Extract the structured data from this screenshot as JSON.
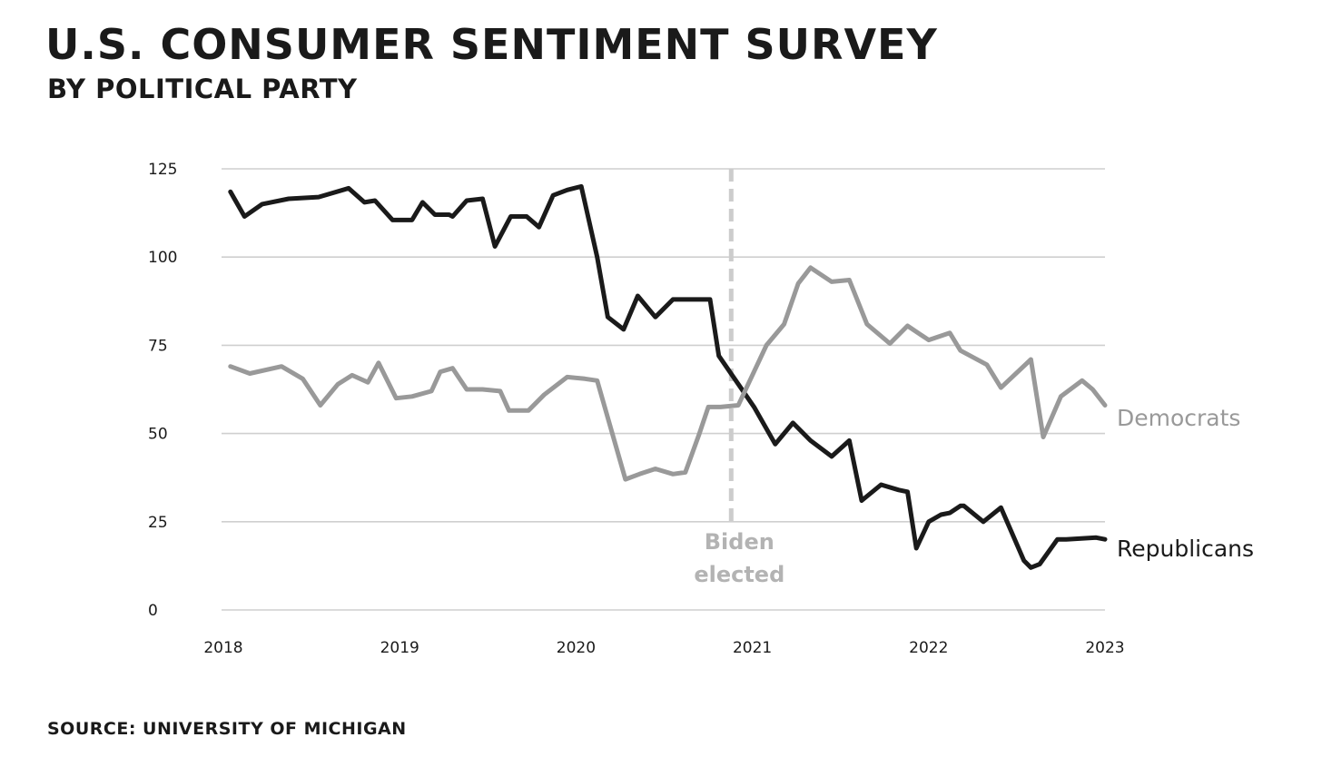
{
  "chart_data": {
    "type": "line",
    "title": "U.S. CONSUMER SENTIMENT SURVEY",
    "subtitle": "BY POLITICAL PARTY",
    "source": "SOURCE: UNIVERSITY OF MICHIGAN",
    "xlabel": "",
    "ylabel": "",
    "xlim": [
      2018,
      2023
    ],
    "ylim": [
      0,
      125
    ],
    "x_ticks": [
      "2018",
      "2019",
      "2020",
      "2021",
      "2022",
      "2023"
    ],
    "y_ticks": [
      "0",
      "25",
      "50",
      "75",
      "100",
      "125"
    ],
    "grid": "horizontal",
    "series": [
      {
        "name": "Republicans",
        "color": "#1a1a1a",
        "x": [
          2018.04,
          2018.12,
          2018.22,
          2018.37,
          2018.54,
          2018.71,
          2018.8,
          2018.86,
          2018.96,
          2019.07,
          2019.13,
          2019.2,
          2019.28,
          2019.3,
          2019.38,
          2019.47,
          2019.54,
          2019.63,
          2019.72,
          2019.79,
          2019.87,
          2019.95,
          2020.03,
          2020.12,
          2020.18,
          2020.27,
          2020.35,
          2020.45,
          2020.55,
          2020.65,
          2020.76,
          2020.81,
          2021.01,
          2021.13,
          2021.23,
          2021.33,
          2021.45,
          2021.55,
          2021.62,
          2021.73,
          2021.83,
          2021.88,
          2021.93,
          2022.0,
          2022.07,
          2022.12,
          2022.18,
          2022.2,
          2022.31,
          2022.41,
          2022.54,
          2022.58,
          2022.63,
          2022.73,
          2022.78,
          2022.95,
          2023.0
        ],
        "values": [
          118.5,
          111.5,
          115,
          116.5,
          117,
          119.5,
          115.5,
          116,
          110.5,
          110.5,
          115.5,
          112,
          112,
          111.5,
          116,
          116.5,
          103,
          111.5,
          111.5,
          108.5,
          117.5,
          119,
          120,
          100,
          83,
          79.5,
          89,
          83,
          88,
          88,
          88,
          72,
          57.5,
          47,
          53,
          48,
          43.5,
          48,
          31,
          35.5,
          34,
          33.5,
          17.5,
          25,
          27,
          27.5,
          29.5,
          29.5,
          25,
          29,
          14,
          12,
          13,
          20,
          20,
          20.5,
          20
        ]
      },
      {
        "name": "Democrats",
        "color": "#999999",
        "x": [
          2018.04,
          2018.15,
          2018.33,
          2018.45,
          2018.55,
          2018.65,
          2018.73,
          2018.82,
          2018.88,
          2018.98,
          2019.07,
          2019.18,
          2019.23,
          2019.3,
          2019.38,
          2019.47,
          2019.57,
          2019.62,
          2019.73,
          2019.82,
          2019.95,
          2020.05,
          2020.12,
          2020.28,
          2020.36,
          2020.45,
          2020.55,
          2020.62,
          2020.7,
          2020.75,
          2020.82,
          2020.92,
          2021.08,
          2021.18,
          2021.26,
          2021.33,
          2021.45,
          2021.55,
          2021.65,
          2021.78,
          2021.88,
          2022.0,
          2022.12,
          2022.18,
          2022.33,
          2022.41,
          2022.58,
          2022.65,
          2022.75,
          2022.87,
          2022.93,
          2023.0
        ],
        "values": [
          69,
          67,
          69,
          65.5,
          58,
          64,
          66.5,
          64.5,
          70,
          60,
          60.5,
          62,
          67.5,
          68.5,
          62.5,
          62.5,
          62,
          56.5,
          56.5,
          61,
          66,
          65.5,
          65,
          37,
          38.5,
          40,
          38.5,
          39,
          50,
          57.5,
          57.5,
          58,
          75,
          81,
          92.5,
          97,
          93,
          93.5,
          81,
          75.5,
          80.5,
          76.5,
          78.5,
          73.5,
          69.5,
          63,
          71,
          49,
          60.5,
          65,
          62.5,
          58
        ]
      }
    ],
    "annotations": [
      {
        "x": 2020.88,
        "line_style": "dashed",
        "color": "#cccccc",
        "text_lines": [
          "Biden",
          "elected"
        ]
      }
    ],
    "series_labels": [
      "Democrats",
      "Republicans"
    ]
  }
}
